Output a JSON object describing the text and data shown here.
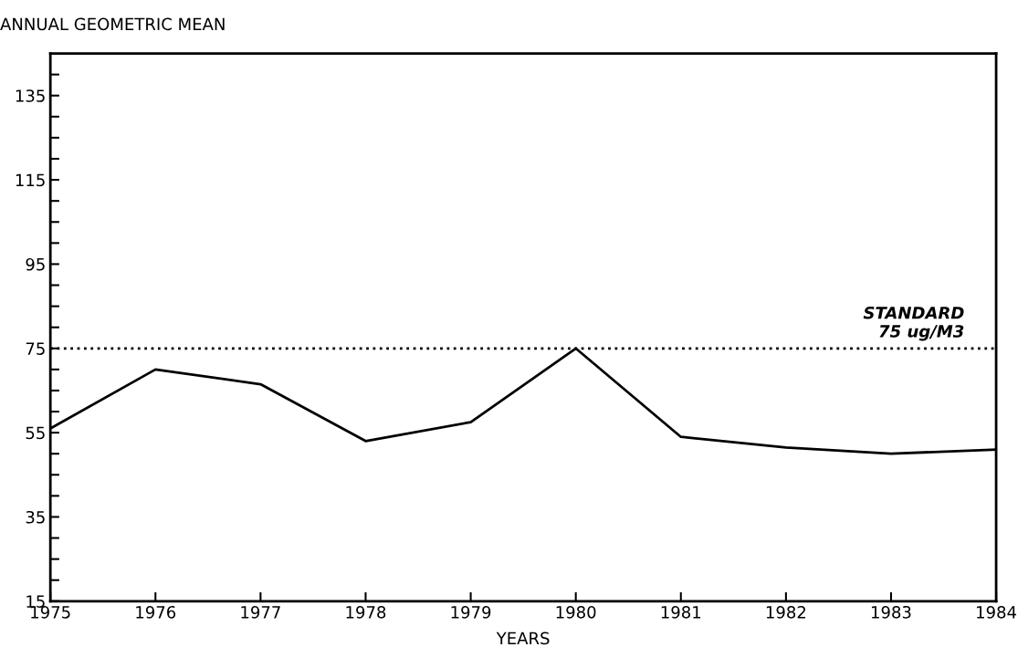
{
  "chart_data": {
    "type": "line",
    "title": "ANNUAL GEOMETRIC MEAN",
    "xlabel": "YEARS",
    "x": [
      1975,
      1976,
      1977,
      1978,
      1979,
      1980,
      1981,
      1982,
      1983,
      1984
    ],
    "series": [
      {
        "color": "#000000",
        "values": [
          56,
          70,
          66.5,
          53,
          57.5,
          75,
          54,
          51.5,
          50,
          51
        ]
      }
    ],
    "xlim": [
      1975,
      1984
    ],
    "xticks": [
      1975,
      1976,
      1977,
      1978,
      1979,
      1980,
      1981,
      1982,
      1983,
      1984
    ],
    "ylim": [
      15,
      145
    ],
    "yticks": [
      15,
      {
        "value": 20,
        "label": null
      },
      {
        "value": 25,
        "label": null
      },
      {
        "value": 30,
        "label": null
      },
      35,
      {
        "value": 40,
        "label": null
      },
      {
        "value": 45,
        "label": null
      },
      {
        "value": 50,
        "label": null
      },
      55,
      {
        "value": 60,
        "label": null
      },
      {
        "value": 65,
        "label": null
      },
      {
        "value": 70,
        "label": null
      },
      75,
      {
        "value": 80,
        "label": null
      },
      {
        "value": 85,
        "label": null
      },
      {
        "value": 90,
        "label": null
      },
      95,
      {
        "value": 100,
        "label": null
      },
      {
        "value": 105,
        "label": null
      },
      {
        "value": 110,
        "label": null
      },
      115,
      {
        "value": 120,
        "label": null
      },
      {
        "value": 125,
        "label": null
      },
      {
        "value": 130,
        "label": null
      },
      135,
      {
        "value": 140,
        "label": null
      }
    ],
    "ref_lines": [
      {
        "axis": "y",
        "value": 75,
        "label": "STANDARD\n75 ug/M3",
        "color": "#000000",
        "line_style": "dotted"
      }
    ],
    "grid": false,
    "legend": false,
    "marker": "none",
    "line_style": "solid"
  }
}
